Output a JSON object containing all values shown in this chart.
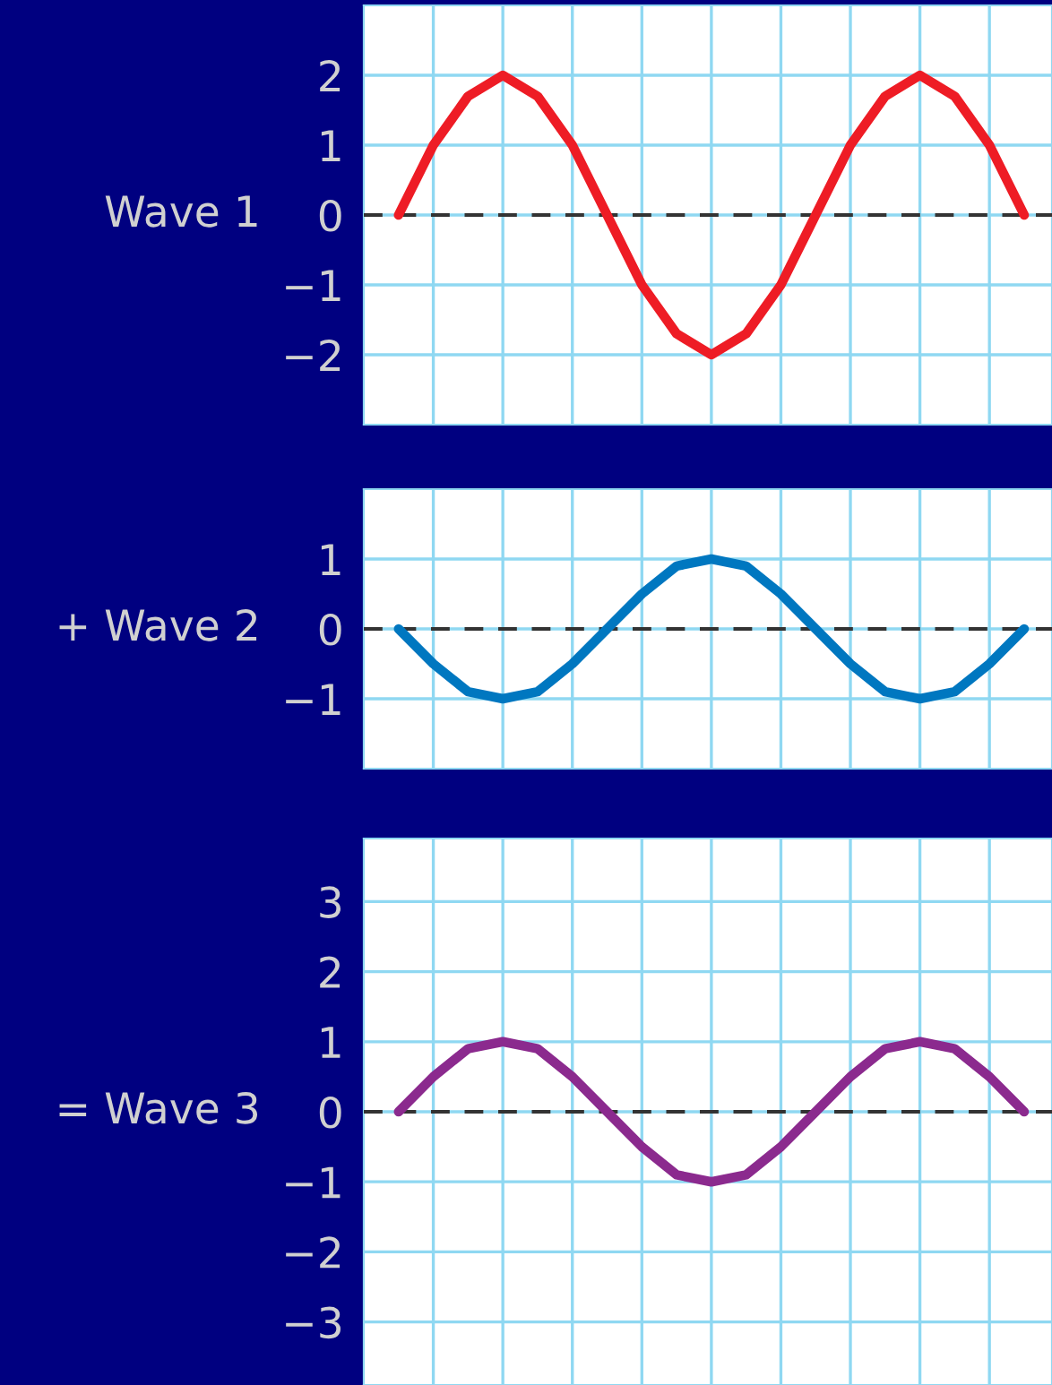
{
  "chart_data": [
    {
      "type": "line",
      "ylabel": "Wave 1",
      "categories": [
        null,
        null,
        null,
        null,
        null,
        null,
        null,
        null,
        null,
        null,
        null,
        null,
        null,
        null,
        null,
        null,
        null,
        null,
        null
      ],
      "ylim": [
        -3,
        3
      ],
      "yticks": [
        -2,
        -1,
        0,
        1,
        2
      ],
      "grid": true,
      "tick_labels": "y",
      "line_style": "solid",
      "series": [
        {
          "color": "#ee1c25",
          "values": [
            0,
            1,
            1.7,
            2,
            1.7,
            1,
            0,
            -1,
            -1.7,
            -2,
            -1.7,
            -1,
            0,
            1,
            1.7,
            2,
            1.7,
            1,
            0
          ]
        }
      ],
      "ref_lines": [
        {
          "axis": "y",
          "value": 0,
          "color": "#333333",
          "line_style": "dashed"
        }
      ]
    },
    {
      "type": "line",
      "ylabel": "+ Wave 2",
      "categories": [
        null,
        null,
        null,
        null,
        null,
        null,
        null,
        null,
        null,
        null,
        null,
        null,
        null,
        null,
        null,
        null,
        null,
        null,
        null
      ],
      "ylim": [
        -2,
        2
      ],
      "yticks": [
        -1,
        0,
        1
      ],
      "grid": true,
      "tick_labels": "y",
      "line_style": "solid",
      "series": [
        {
          "color": "#0077c0",
          "values": [
            0,
            -0.5,
            -0.9,
            -1,
            -0.9,
            -0.5,
            0,
            0.5,
            0.9,
            1,
            0.9,
            0.5,
            0,
            -0.5,
            -0.9,
            -1,
            -0.9,
            -0.5,
            0
          ]
        }
      ],
      "ref_lines": [
        {
          "axis": "y",
          "value": 0,
          "color": "#333333",
          "line_style": "dashed"
        }
      ]
    },
    {
      "type": "line",
      "ylabel": "= Wave 3",
      "categories": [
        null,
        null,
        null,
        null,
        null,
        null,
        null,
        null,
        null,
        null,
        null,
        null,
        null,
        null,
        null,
        null,
        null,
        null,
        null
      ],
      "ylim": [
        -3.9,
        3.9
      ],
      "yticks": [
        -3,
        -2,
        -1,
        0,
        1,
        2,
        3
      ],
      "grid": true,
      "tick_labels": "y",
      "line_style": "solid",
      "series": [
        {
          "color": "#8b2a8e",
          "values": [
            0,
            0.5,
            0.9,
            1,
            0.9,
            0.5,
            0,
            -0.5,
            -0.9,
            -1,
            -0.9,
            -0.5,
            0,
            0.5,
            0.9,
            1,
            0.9,
            0.5,
            0
          ]
        }
      ],
      "ref_lines": [
        {
          "axis": "y",
          "value": 0,
          "color": "#333333",
          "line_style": "dashed"
        }
      ]
    }
  ]
}
